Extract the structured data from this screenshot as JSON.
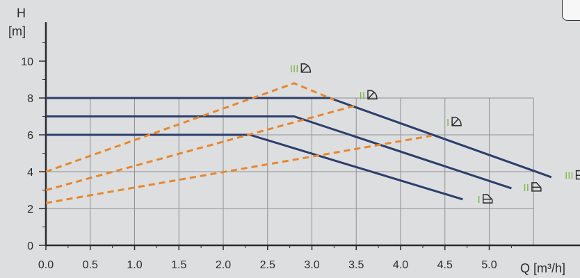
{
  "chart_data": {
    "type": "line",
    "ylabel_line1": "H",
    "ylabel_line2": "[m]",
    "xlabel": "Q [m³/h]",
    "xlim": [
      0,
      5.5
    ],
    "ylim": [
      0,
      11
    ],
    "x_ticks": [
      "0.0",
      "0.5",
      "1.0",
      "1.5",
      "2.0",
      "2.5",
      "3.0",
      "3.5",
      "4.0",
      "4.5",
      "5.0"
    ],
    "y_ticks": [
      "0",
      "2",
      "4",
      "6",
      "8",
      "10"
    ],
    "grid": true,
    "series": [
      {
        "label": "I",
        "symbol": "constant-pressure",
        "style": "solid",
        "color": "#2c3e6b",
        "x": [
          0,
          2.3,
          4.7
        ],
        "y": [
          6,
          6,
          2.5
        ]
      },
      {
        "label": "II",
        "symbol": "constant-pressure",
        "style": "solid",
        "color": "#2c3e6b",
        "x": [
          0,
          2.8,
          5.25
        ],
        "y": [
          7,
          7,
          3.1
        ]
      },
      {
        "label": "III",
        "symbol": "constant-pressure",
        "style": "solid",
        "color": "#2c3e6b",
        "x": [
          0,
          3.2,
          5.7
        ],
        "y": [
          8,
          8,
          3.7
        ]
      },
      {
        "label": "I",
        "symbol": "proportional-pressure",
        "style": "dashed",
        "color": "#e8872e",
        "x": [
          0,
          4.35
        ],
        "y": [
          2.3,
          5.95
        ]
      },
      {
        "label": "II",
        "symbol": "proportional-pressure",
        "style": "dashed",
        "color": "#e8872e",
        "x": [
          0,
          3.5
        ],
        "y": [
          3.0,
          7.6
        ]
      },
      {
        "label": "III",
        "symbol": "proportional-pressure",
        "style": "dashed",
        "color": "#e8872e",
        "x": [
          0,
          2.8,
          3.25
        ],
        "y": [
          4.0,
          8.8,
          7.9
        ]
      }
    ],
    "annotations": [
      {
        "text": "III",
        "symbol": "proportional-pressure",
        "x": 2.85,
        "y": 9.4
      },
      {
        "text": "II",
        "symbol": "proportional-pressure",
        "x": 3.6,
        "y": 7.95
      },
      {
        "text": "I",
        "symbol": "proportional-pressure",
        "x": 4.55,
        "y": 6.5
      },
      {
        "text": "III",
        "symbol": "constant-pressure",
        "x": 5.95,
        "y": 3.6
      },
      {
        "text": "II",
        "symbol": "constant-pressure",
        "x": 5.45,
        "y": 2.95
      },
      {
        "text": "I",
        "symbol": "constant-pressure",
        "x": 4.9,
        "y": 2.3
      }
    ]
  }
}
